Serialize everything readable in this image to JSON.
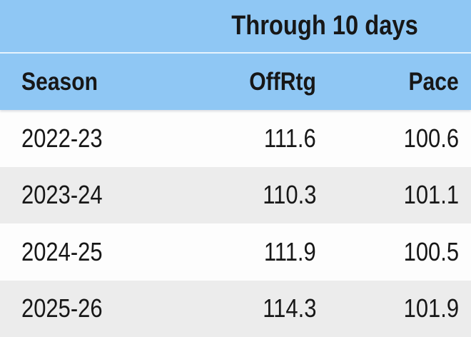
{
  "chart_data": {
    "type": "table",
    "title": "Through 10 days",
    "columns": [
      "Season",
      "OffRtg",
      "Pace"
    ],
    "rows": [
      [
        "2022-23",
        111.6,
        100.6
      ],
      [
        "2023-24",
        110.3,
        101.1
      ],
      [
        "2024-25",
        111.9,
        100.5
      ],
      [
        "2025-26",
        114.3,
        101.9
      ]
    ],
    "layout_hints": {
      "season_column_align": "left",
      "numeric_columns_align": "right",
      "title_spans": "OffRtg+Pace columns"
    }
  },
  "colors": {
    "header_blue": "#8fc7f4",
    "row_white": "#fdfdfd",
    "row_alt_gray": "#ececec",
    "text": "#171717",
    "title_separator": "#e6f1fb"
  }
}
